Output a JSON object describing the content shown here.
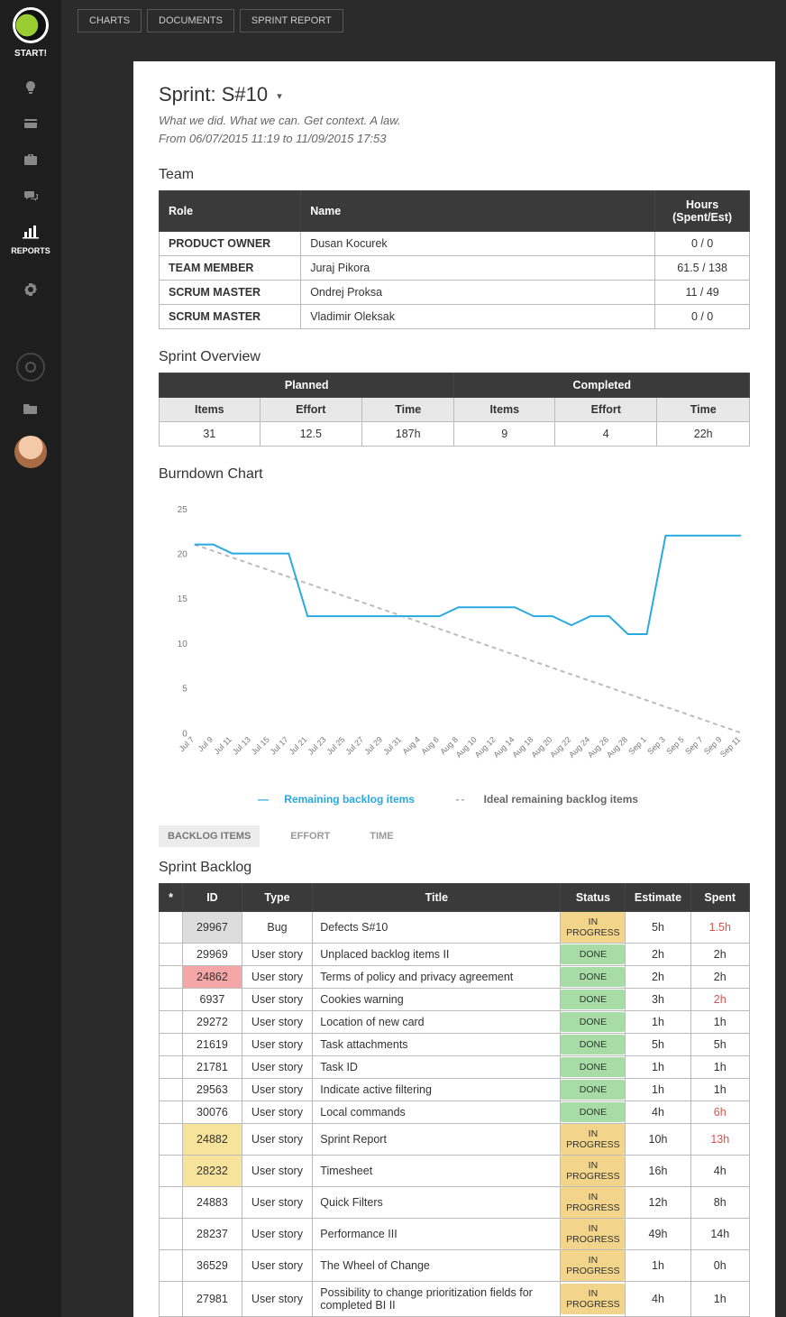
{
  "sidebar": {
    "start": "START!",
    "reports_label": "REPORTS"
  },
  "topbar": {
    "tabs": [
      "CHARTS",
      "DOCUMENTS",
      "SPRINT REPORT"
    ]
  },
  "header": {
    "title": "Sprint: S#10",
    "tagline": "What we did. What we can. Get context. A law.",
    "daterange": "From 06/07/2015 11:19 to 11/09/2015 17:53"
  },
  "team": {
    "title": "Team",
    "columns": [
      "Role",
      "Name",
      "Hours (Spent/Est)"
    ],
    "rows": [
      {
        "role": "PRODUCT OWNER",
        "name": "Dusan Kocurek",
        "hours": "0 / 0"
      },
      {
        "role": "TEAM MEMBER",
        "name": "Juraj Pikora",
        "hours": "61.5 / 138"
      },
      {
        "role": "SCRUM MASTER",
        "name": "Ondrej Proksa",
        "hours": "11 / 49"
      },
      {
        "role": "SCRUM MASTER",
        "name": "Vladimir Oleksak",
        "hours": "0 / 0"
      }
    ]
  },
  "overview": {
    "title": "Sprint Overview",
    "planned_label": "Planned",
    "completed_label": "Completed",
    "sub": [
      "Items",
      "Effort",
      "Time",
      "Items",
      "Effort",
      "Time"
    ],
    "vals": [
      "31",
      "12.5",
      "187h",
      "9",
      "4",
      "22h"
    ]
  },
  "burndown": {
    "title": "Burndown Chart",
    "type": "line",
    "colors": {
      "remaining": "#29a9e0",
      "ideal": "#bbbbbb",
      "axis": "#888888",
      "tick_text": "#777777",
      "background": "#ffffff"
    },
    "ylim": [
      0,
      25
    ],
    "ytick_step": 5,
    "yticks": [
      0,
      5,
      10,
      15,
      20,
      25
    ],
    "xlabels": [
      "Jul 7",
      "Jul 9",
      "Jul 11",
      "Jul 13",
      "Jul 15",
      "Jul 17",
      "Jul 21",
      "Jul 23",
      "Jul 25",
      "Jul 27",
      "Jul 29",
      "Jul 31",
      "Aug 4",
      "Aug 6",
      "Aug 8",
      "Aug 10",
      "Aug 12",
      "Aug 14",
      "Aug 18",
      "Aug 20",
      "Aug 22",
      "Aug 24",
      "Aug 26",
      "Aug 28",
      "Sep 1",
      "Sep 3",
      "Sep 5",
      "Sep 7",
      "Sep 9",
      "Sep 11"
    ],
    "remaining": [
      21,
      21,
      20,
      20,
      20,
      20,
      13,
      13,
      13,
      13,
      13,
      13,
      13,
      13,
      14,
      14,
      14,
      14,
      13,
      13,
      12,
      13,
      13,
      11,
      11,
      22,
      22,
      22,
      22,
      22
    ],
    "ideal_start": 21,
    "ideal_end": 0,
    "legend": {
      "remaining": "Remaining backlog items",
      "ideal": "Ideal remaining backlog items"
    },
    "line_width": 2,
    "ideal_dash": "5,4",
    "label_fontsize": 10
  },
  "subtabs": [
    "BACKLOG ITEMS",
    "EFFORT",
    "TIME"
  ],
  "backlog": {
    "title": "Sprint Backlog",
    "columns": [
      "*",
      "ID",
      "Type",
      "Title",
      "Status",
      "Estimate",
      "Spent"
    ],
    "status_colors": {
      "DONE": "#a7dca7",
      "IN PROGRESS": "#f2d48a",
      "TODO": "#dddddd"
    },
    "rows": [
      {
        "id": "29967",
        "id_hl": "grey",
        "type": "Bug",
        "title": "Defects S#10",
        "status": "IN PROGRESS",
        "est": "5h",
        "spent": "1.5h",
        "spent_diff": true
      },
      {
        "id": "29969",
        "type": "User story",
        "title": "Unplaced backlog items II",
        "status": "DONE",
        "est": "2h",
        "spent": "2h"
      },
      {
        "id": "24862",
        "id_hl": "pink",
        "type": "User story",
        "title": "Terms of policy and privacy agreement",
        "status": "DONE",
        "est": "2h",
        "spent": "2h"
      },
      {
        "id": "6937",
        "type": "User story",
        "title": "Cookies warning",
        "status": "DONE",
        "est": "3h",
        "spent": "2h",
        "spent_diff": true
      },
      {
        "id": "29272",
        "type": "User story",
        "title": "Location of new card",
        "status": "DONE",
        "est": "1h",
        "spent": "1h"
      },
      {
        "id": "21619",
        "type": "User story",
        "title": "Task attachments",
        "status": "DONE",
        "est": "5h",
        "spent": "5h"
      },
      {
        "id": "21781",
        "type": "User story",
        "title": "Task ID",
        "status": "DONE",
        "est": "1h",
        "spent": "1h"
      },
      {
        "id": "29563",
        "type": "User story",
        "title": "Indicate active filtering",
        "status": "DONE",
        "est": "1h",
        "spent": "1h"
      },
      {
        "id": "30076",
        "type": "User story",
        "title": "Local commands",
        "status": "DONE",
        "est": "4h",
        "spent": "6h",
        "spent_diff": true
      },
      {
        "id": "24882",
        "id_hl": "yellow",
        "type": "User story",
        "title": "Sprint Report",
        "status": "IN PROGRESS",
        "est": "10h",
        "spent": "13h",
        "spent_diff": true
      },
      {
        "id": "28232",
        "id_hl": "yellow",
        "type": "User story",
        "title": "Timesheet",
        "status": "IN PROGRESS",
        "est": "16h",
        "spent": "4h"
      },
      {
        "id": "24883",
        "type": "User story",
        "title": "Quick Filters",
        "status": "IN PROGRESS",
        "est": "12h",
        "spent": "8h"
      },
      {
        "id": "28237",
        "type": "User story",
        "title": "Performance III",
        "status": "IN PROGRESS",
        "est": "49h",
        "spent": "14h"
      },
      {
        "id": "36529",
        "type": "User story",
        "title": "The Wheel of Change",
        "status": "IN PROGRESS",
        "est": "1h",
        "spent": "0h"
      },
      {
        "id": "27981",
        "type": "User story",
        "title": "Possibility to change prioritization fields for completed BI II",
        "status": "IN PROGRESS",
        "est": "4h",
        "spent": "1h"
      }
    ]
  }
}
